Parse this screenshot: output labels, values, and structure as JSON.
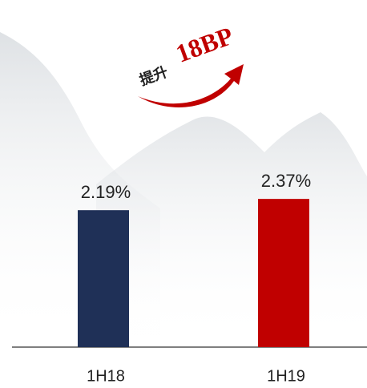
{
  "chart_data": {
    "type": "bar",
    "annotation": {
      "text": "提升",
      "highlight": "18BP"
    },
    "categories": [
      "1H18",
      "1H19"
    ],
    "values": [
      2.19,
      2.37
    ],
    "value_labels": [
      "2.19%",
      "2.37%"
    ],
    "colors": [
      "#1f3057",
      "#c00000"
    ]
  }
}
